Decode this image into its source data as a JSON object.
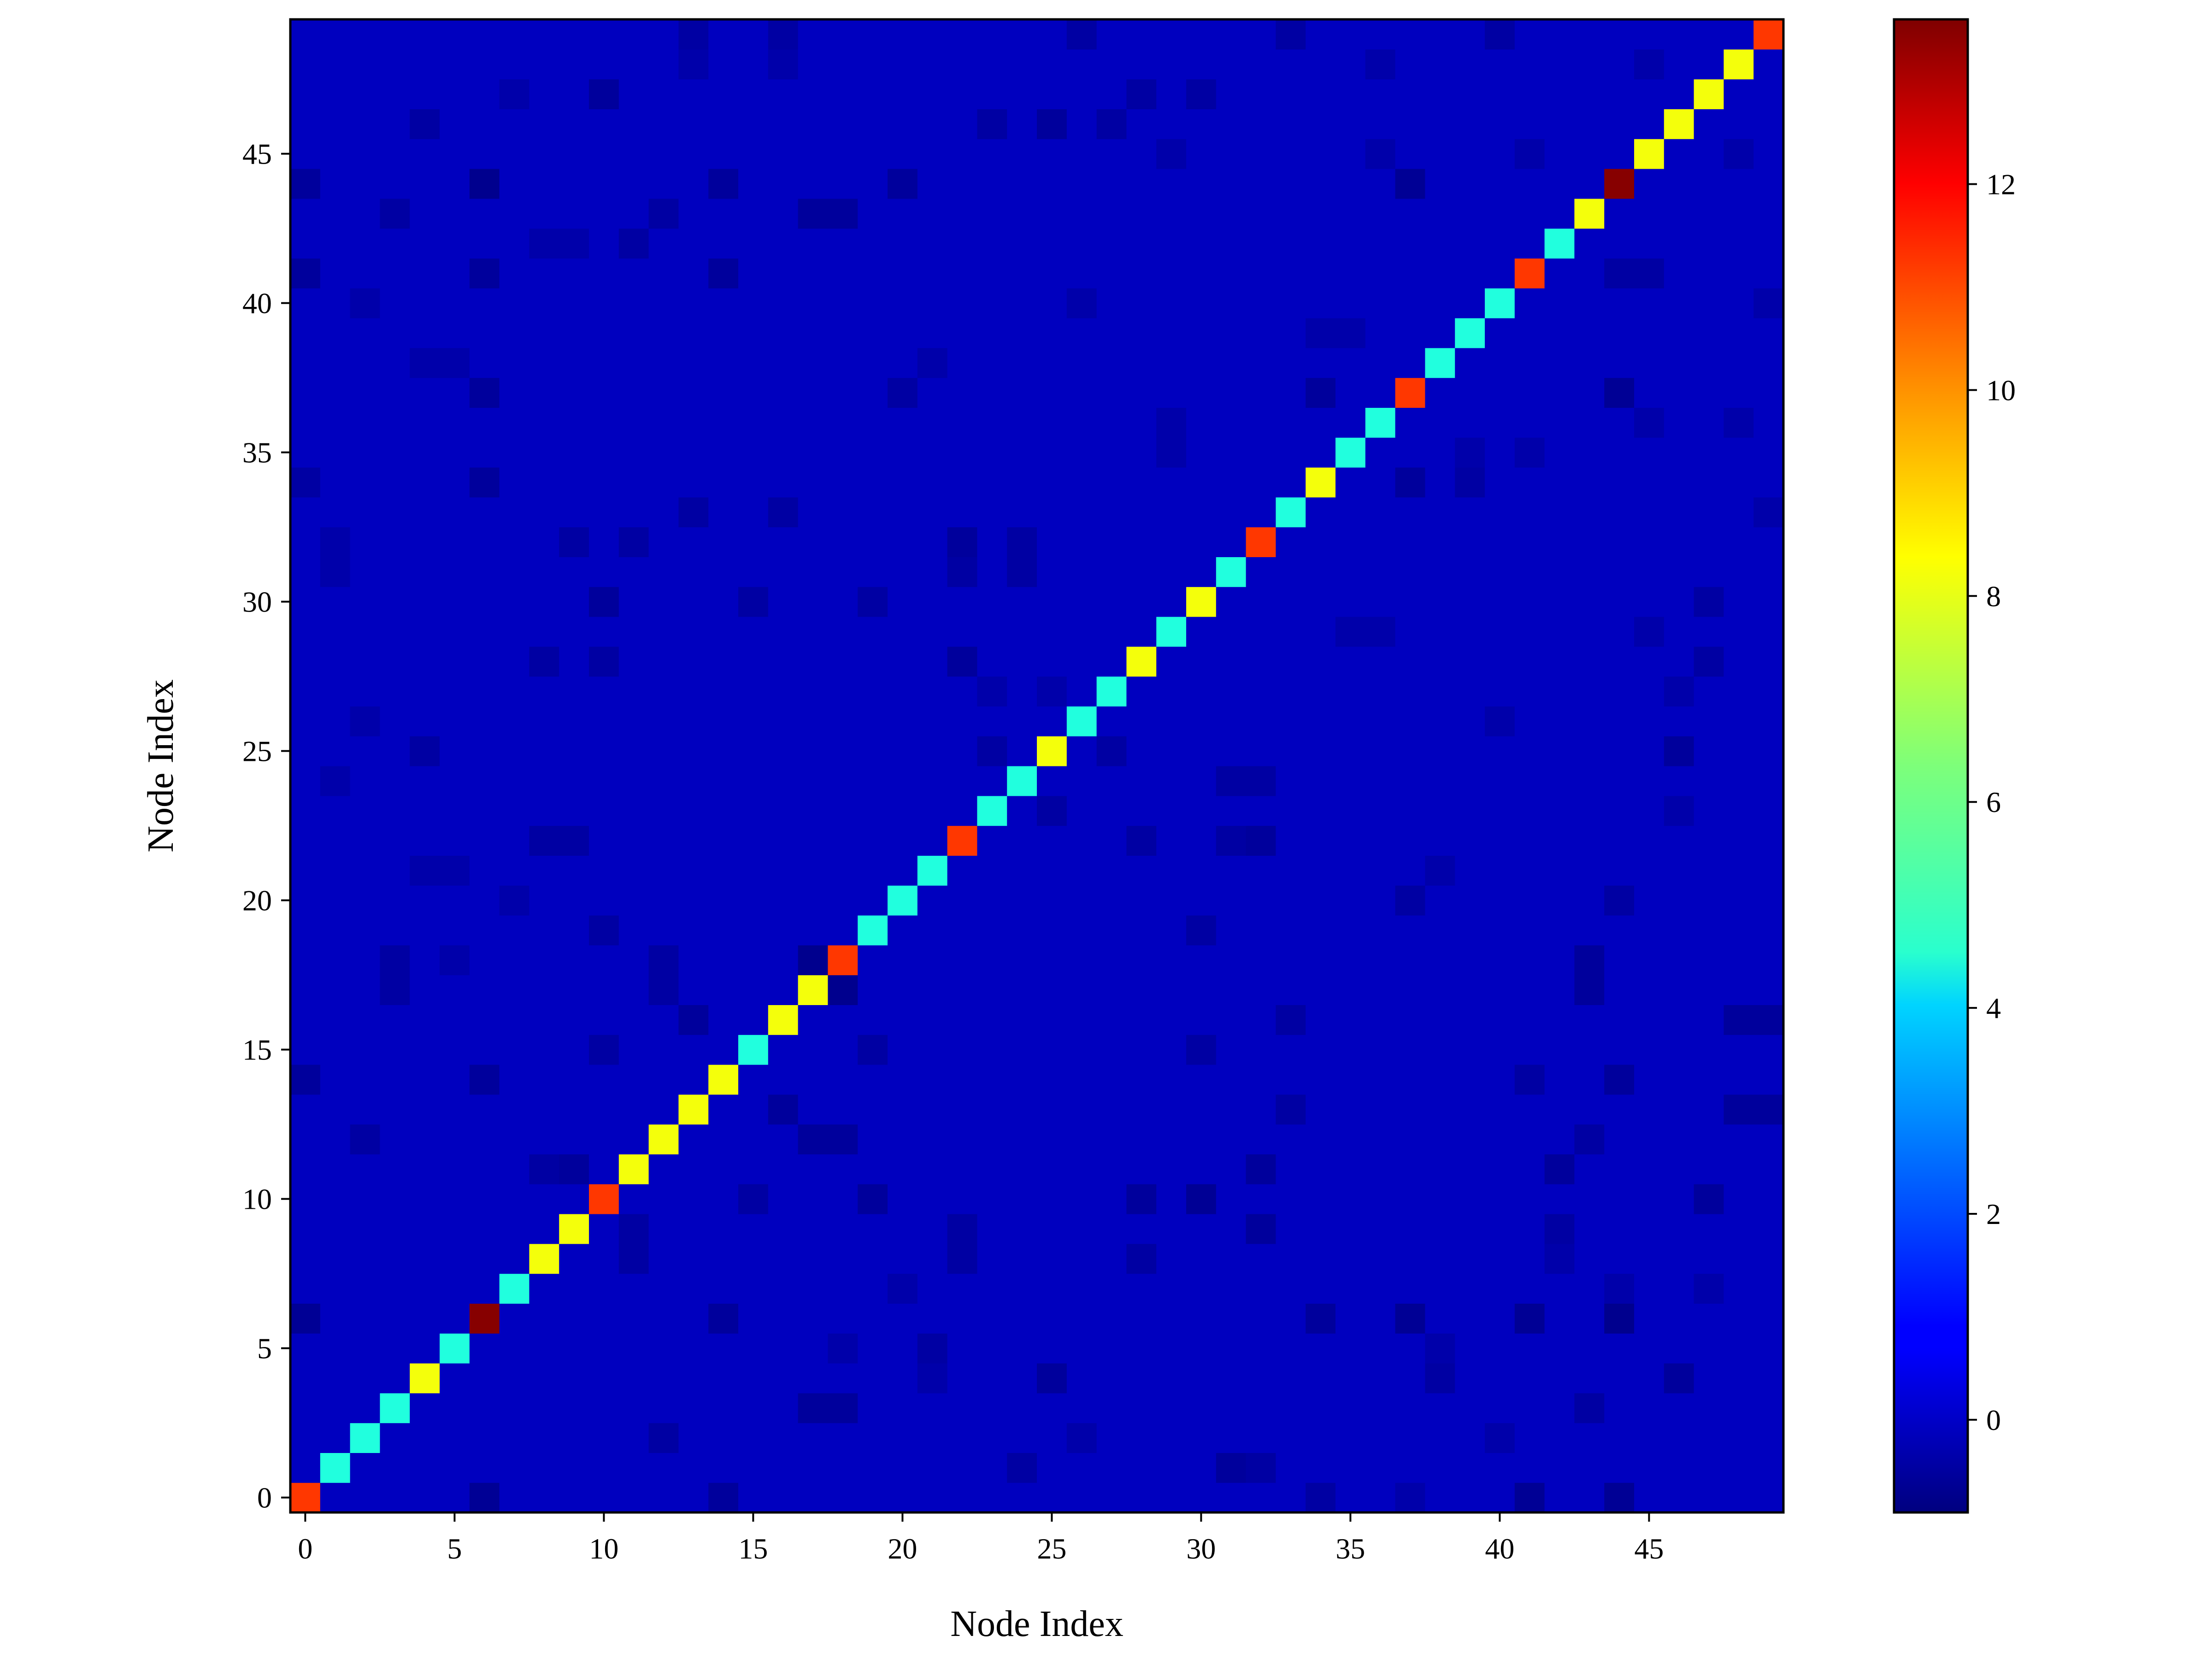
{
  "chart_data": {
    "type": "heatmap",
    "title": "",
    "xlabel": "Node Index",
    "ylabel": "Node Index",
    "n": 50,
    "xlim": [
      -0.5,
      49.5
    ],
    "ylim": [
      -0.5,
      49.5
    ],
    "xticks": [
      0,
      5,
      10,
      15,
      20,
      25,
      30,
      35,
      40,
      45
    ],
    "yticks": [
      0,
      5,
      10,
      15,
      20,
      25,
      30,
      35,
      40,
      45
    ],
    "colormap": "jet",
    "vmin": -0.9,
    "vmax": 13.6,
    "off_diagonal_value": 0,
    "colorbar_ticks": [
      0,
      2,
      4,
      6,
      8,
      10,
      12
    ],
    "diagonal_values": [
      11,
      5,
      5,
      5,
      8,
      5,
      13.5,
      5,
      8,
      8,
      11,
      8,
      8,
      8,
      8,
      5,
      8,
      8,
      11,
      5,
      5,
      5,
      11,
      5,
      5,
      8,
      5,
      5,
      8,
      5,
      8,
      5,
      11,
      5,
      8,
      5,
      5,
      11,
      5,
      5,
      5,
      11,
      5,
      8,
      13.5,
      8,
      8,
      8,
      8,
      11
    ],
    "off_diagonal_cells": [
      [
        6,
        0,
        -0.6
      ],
      [
        14,
        0,
        -0.5
      ],
      [
        34,
        0,
        -0.4
      ],
      [
        37,
        0,
        -0.3
      ],
      [
        41,
        0,
        -0.6
      ],
      [
        44,
        0,
        -0.6
      ],
      [
        24,
        1,
        -0.4
      ],
      [
        31,
        1,
        -0.5
      ],
      [
        32,
        1,
        -0.4
      ],
      [
        12,
        2,
        -0.4
      ],
      [
        26,
        2,
        -0.3
      ],
      [
        40,
        2,
        -0.3
      ],
      [
        17,
        3,
        -0.5
      ],
      [
        18,
        3,
        -0.5
      ],
      [
        43,
        3,
        -0.4
      ],
      [
        21,
        4,
        -0.3
      ],
      [
        25,
        4,
        -0.5
      ],
      [
        38,
        4,
        -0.4
      ],
      [
        46,
        4,
        -0.5
      ],
      [
        18,
        5,
        -0.3
      ],
      [
        21,
        5,
        -0.4
      ],
      [
        38,
        5,
        -0.3
      ],
      [
        0,
        6,
        -0.6
      ],
      [
        14,
        6,
        -0.5
      ],
      [
        34,
        6,
        -0.5
      ],
      [
        37,
        6,
        -0.6
      ],
      [
        41,
        6,
        -0.6
      ],
      [
        44,
        6,
        -0.7
      ],
      [
        20,
        7,
        -0.3
      ],
      [
        44,
        7,
        -0.3
      ],
      [
        47,
        7,
        -0.3
      ],
      [
        11,
        8,
        -0.4
      ],
      [
        22,
        8,
        -0.4
      ],
      [
        28,
        8,
        -0.4
      ],
      [
        42,
        8,
        -0.3
      ],
      [
        11,
        9,
        -0.4
      ],
      [
        22,
        9,
        -0.4
      ],
      [
        32,
        9,
        -0.5
      ],
      [
        42,
        9,
        -0.4
      ],
      [
        15,
        10,
        -0.4
      ],
      [
        19,
        10,
        -0.5
      ],
      [
        28,
        10,
        -0.5
      ],
      [
        30,
        10,
        -0.6
      ],
      [
        47,
        10,
        -0.5
      ],
      [
        8,
        11,
        -0.4
      ],
      [
        9,
        11,
        -0.5
      ],
      [
        32,
        11,
        -0.5
      ],
      [
        42,
        11,
        -0.5
      ],
      [
        2,
        12,
        -0.4
      ],
      [
        17,
        12,
        -0.5
      ],
      [
        18,
        12,
        -0.5
      ],
      [
        43,
        12,
        -0.4
      ],
      [
        16,
        13,
        -0.5
      ],
      [
        33,
        13,
        -0.4
      ],
      [
        48,
        13,
        -0.5
      ],
      [
        49,
        13,
        -0.5
      ],
      [
        0,
        14,
        -0.5
      ],
      [
        6,
        14,
        -0.5
      ],
      [
        41,
        14,
        -0.4
      ],
      [
        44,
        14,
        -0.5
      ],
      [
        10,
        15,
        -0.4
      ],
      [
        19,
        15,
        -0.4
      ],
      [
        30,
        15,
        -0.4
      ],
      [
        13,
        16,
        -0.5
      ],
      [
        33,
        16,
        -0.4
      ],
      [
        48,
        16,
        -0.5
      ],
      [
        49,
        16,
        -0.5
      ],
      [
        3,
        17,
        -0.4
      ],
      [
        12,
        17,
        -0.4
      ],
      [
        18,
        17,
        -0.7
      ],
      [
        43,
        17,
        -0.5
      ],
      [
        3,
        18,
        -0.4
      ],
      [
        5,
        18,
        -0.3
      ],
      [
        12,
        18,
        -0.4
      ],
      [
        17,
        18,
        -0.7
      ],
      [
        43,
        18,
        -0.5
      ],
      [
        10,
        19,
        -0.4
      ],
      [
        30,
        19,
        -0.4
      ],
      [
        7,
        20,
        -0.3
      ],
      [
        37,
        20,
        -0.4
      ],
      [
        44,
        20,
        -0.4
      ],
      [
        4,
        21,
        -0.3
      ],
      [
        5,
        21,
        -0.3
      ],
      [
        38,
        21,
        -0.3
      ],
      [
        8,
        22,
        -0.4
      ],
      [
        9,
        22,
        -0.4
      ],
      [
        28,
        22,
        -0.4
      ],
      [
        31,
        22,
        -0.4
      ],
      [
        32,
        22,
        -0.5
      ],
      [
        25,
        23,
        -0.4
      ],
      [
        46,
        23,
        -0.3
      ],
      [
        1,
        24,
        -0.3
      ],
      [
        31,
        24,
        -0.4
      ],
      [
        32,
        24,
        -0.4
      ],
      [
        4,
        25,
        -0.4
      ],
      [
        23,
        25,
        -0.4
      ],
      [
        27,
        25,
        -0.4
      ],
      [
        46,
        25,
        -0.5
      ],
      [
        2,
        26,
        -0.3
      ],
      [
        40,
        26,
        -0.3
      ],
      [
        23,
        27,
        -0.3
      ],
      [
        25,
        27,
        -0.3
      ],
      [
        46,
        27,
        -0.3
      ],
      [
        8,
        28,
        -0.4
      ],
      [
        10,
        28,
        -0.4
      ],
      [
        22,
        28,
        -0.5
      ],
      [
        47,
        28,
        -0.4
      ],
      [
        35,
        29,
        -0.3
      ],
      [
        36,
        29,
        -0.3
      ],
      [
        45,
        29,
        -0.3
      ],
      [
        10,
        30,
        -0.5
      ],
      [
        15,
        30,
        -0.4
      ],
      [
        19,
        30,
        -0.4
      ],
      [
        47,
        30,
        -0.4
      ],
      [
        1,
        31,
        -0.3
      ],
      [
        22,
        31,
        -0.4
      ],
      [
        24,
        31,
        -0.4
      ],
      [
        1,
        32,
        -0.3
      ],
      [
        9,
        32,
        -0.4
      ],
      [
        11,
        32,
        -0.4
      ],
      [
        22,
        32,
        -0.5
      ],
      [
        24,
        32,
        -0.4
      ],
      [
        13,
        33,
        -0.4
      ],
      [
        16,
        33,
        -0.4
      ],
      [
        49,
        33,
        -0.3
      ],
      [
        0,
        34,
        -0.4
      ],
      [
        6,
        34,
        -0.5
      ],
      [
        37,
        34,
        -0.5
      ],
      [
        39,
        34,
        -0.4
      ],
      [
        29,
        35,
        -0.3
      ],
      [
        39,
        35,
        -0.3
      ],
      [
        41,
        35,
        -0.3
      ],
      [
        29,
        36,
        -0.3
      ],
      [
        45,
        36,
        -0.3
      ],
      [
        48,
        36,
        -0.3
      ],
      [
        6,
        37,
        -0.5
      ],
      [
        20,
        37,
        -0.4
      ],
      [
        34,
        37,
        -0.5
      ],
      [
        44,
        37,
        -0.6
      ],
      [
        4,
        38,
        -0.3
      ],
      [
        5,
        38,
        -0.3
      ],
      [
        21,
        38,
        -0.3
      ],
      [
        34,
        39,
        -0.3
      ],
      [
        35,
        39,
        -0.3
      ],
      [
        2,
        40,
        -0.3
      ],
      [
        26,
        40,
        -0.3
      ],
      [
        49,
        40,
        -0.3
      ],
      [
        0,
        41,
        -0.5
      ],
      [
        6,
        41,
        -0.5
      ],
      [
        14,
        41,
        -0.5
      ],
      [
        44,
        41,
        -0.4
      ],
      [
        45,
        41,
        -0.4
      ],
      [
        8,
        42,
        -0.3
      ],
      [
        9,
        42,
        -0.3
      ],
      [
        11,
        42,
        -0.4
      ],
      [
        3,
        43,
        -0.4
      ],
      [
        12,
        43,
        -0.4
      ],
      [
        17,
        43,
        -0.5
      ],
      [
        18,
        43,
        -0.5
      ],
      [
        0,
        44,
        -0.5
      ],
      [
        6,
        44,
        -0.7
      ],
      [
        14,
        44,
        -0.5
      ],
      [
        20,
        44,
        -0.5
      ],
      [
        37,
        44,
        -0.6
      ],
      [
        29,
        45,
        -0.3
      ],
      [
        36,
        45,
        -0.3
      ],
      [
        41,
        45,
        -0.3
      ],
      [
        48,
        45,
        -0.3
      ],
      [
        4,
        46,
        -0.4
      ],
      [
        23,
        46,
        -0.4
      ],
      [
        25,
        46,
        -0.5
      ],
      [
        27,
        46,
        -0.4
      ],
      [
        7,
        47,
        -0.3
      ],
      [
        10,
        47,
        -0.5
      ],
      [
        28,
        47,
        -0.4
      ],
      [
        30,
        47,
        -0.4
      ],
      [
        13,
        48,
        -0.3
      ],
      [
        16,
        48,
        -0.3
      ],
      [
        36,
        48,
        -0.3
      ],
      [
        45,
        48,
        -0.3
      ],
      [
        13,
        49,
        -0.4
      ],
      [
        16,
        49,
        -0.4
      ],
      [
        26,
        49,
        -0.4
      ],
      [
        33,
        49,
        -0.4
      ],
      [
        40,
        49,
        -0.4
      ]
    ]
  }
}
